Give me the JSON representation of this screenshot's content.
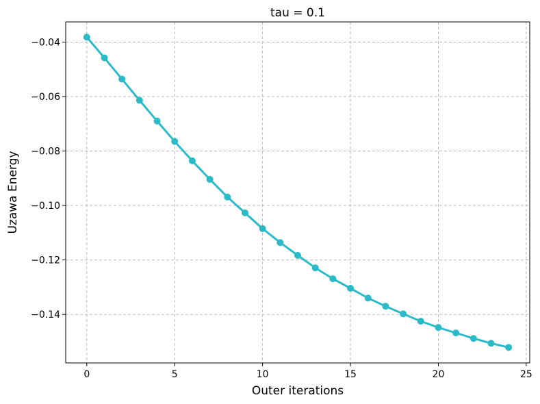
{
  "chart_data": {
    "type": "line",
    "title": "tau = 0.1",
    "x_label": "Outer iterations",
    "y_label": "Uzawa Energy",
    "x": [
      0,
      1,
      2,
      3,
      4,
      5,
      6,
      7,
      8,
      9,
      10,
      11,
      12,
      13,
      14,
      15,
      16,
      17,
      18,
      19,
      20,
      21,
      22,
      23,
      24
    ],
    "values": [
      -0.0382,
      -0.0458,
      -0.0536,
      -0.0614,
      -0.069,
      -0.0765,
      -0.0836,
      -0.0904,
      -0.0969,
      -0.1027,
      -0.1085,
      -0.1136,
      -0.1183,
      -0.1229,
      -0.1269,
      -0.1304,
      -0.134,
      -0.137,
      -0.1398,
      -0.1425,
      -0.1448,
      -0.1468,
      -0.1488,
      -0.1506,
      -0.1521
    ],
    "color": "#2bbbc8",
    "xlim": [
      -1.2,
      25.2
    ],
    "ylim": [
      -0.1578,
      -0.0326
    ],
    "xticks": [
      0,
      5,
      10,
      15,
      20,
      25
    ],
    "yticks": [
      {
        "value": -0.14,
        "label": "−0.14"
      },
      {
        "value": -0.12,
        "label": "−0.12"
      },
      {
        "value": -0.1,
        "label": "−0.10"
      },
      {
        "value": -0.08,
        "label": "−0.08"
      },
      {
        "value": -0.06,
        "label": "−0.06"
      },
      {
        "value": -0.04,
        "label": "−0.04"
      }
    ],
    "grid": true
  }
}
